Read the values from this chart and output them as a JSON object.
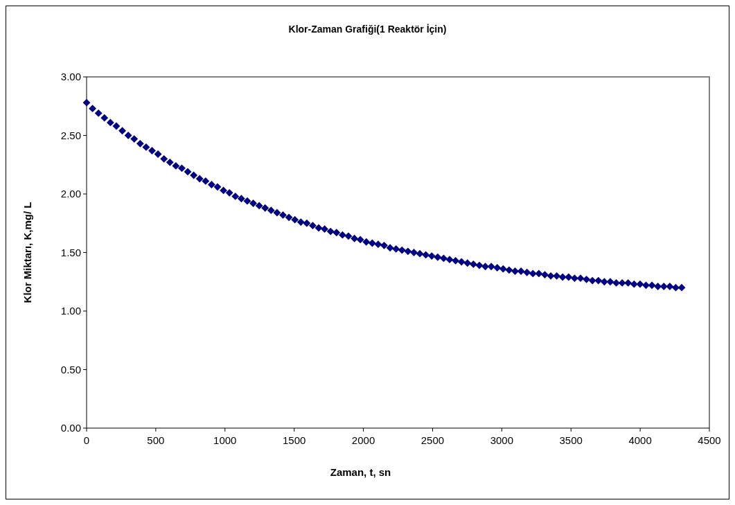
{
  "chart_data": {
    "type": "scatter",
    "title": "Klor-Zaman Grafiği(1 Reaktör İçin)",
    "xlabel": "Zaman, t, sn",
    "ylabel": "Klor Miktarı, K,mg/ L",
    "marker": "diamond",
    "x": [
      0,
      43,
      86,
      129,
      172,
      215,
      258,
      301,
      344,
      387,
      430,
      473,
      516,
      559,
      602,
      645,
      688,
      731,
      774,
      817,
      860,
      903,
      946,
      989,
      1032,
      1075,
      1118,
      1161,
      1204,
      1247,
      1290,
      1333,
      1376,
      1419,
      1462,
      1505,
      1548,
      1591,
      1634,
      1677,
      1720,
      1763,
      1806,
      1849,
      1892,
      1935,
      1978,
      2021,
      2064,
      2107,
      2150,
      2193,
      2236,
      2279,
      2322,
      2365,
      2408,
      2451,
      2494,
      2537,
      2580,
      2623,
      2666,
      2709,
      2752,
      2795,
      2838,
      2881,
      2924,
      2967,
      3010,
      3053,
      3096,
      3139,
      3182,
      3225,
      3268,
      3311,
      3354,
      3397,
      3440,
      3483,
      3526,
      3569,
      3612,
      3655,
      3698,
      3741,
      3784,
      3827,
      3870,
      3913,
      3956,
      3999,
      4042,
      4085,
      4128,
      4171,
      4214,
      4257,
      4300
    ],
    "series": [
      {
        "color": "#000080",
        "values": [
          2.78,
          2.73,
          2.69,
          2.65,
          2.61,
          2.58,
          2.54,
          2.5,
          2.47,
          2.43,
          2.4,
          2.37,
          2.34,
          2.3,
          2.27,
          2.24,
          2.22,
          2.19,
          2.16,
          2.13,
          2.11,
          2.08,
          2.06,
          2.03,
          2.01,
          1.98,
          1.96,
          1.94,
          1.92,
          1.9,
          1.88,
          1.86,
          1.84,
          1.82,
          1.8,
          1.78,
          1.76,
          1.75,
          1.73,
          1.71,
          1.7,
          1.68,
          1.67,
          1.65,
          1.64,
          1.62,
          1.61,
          1.59,
          1.58,
          1.57,
          1.56,
          1.54,
          1.53,
          1.52,
          1.51,
          1.5,
          1.49,
          1.48,
          1.47,
          1.46,
          1.45,
          1.44,
          1.43,
          1.42,
          1.41,
          1.4,
          1.39,
          1.38,
          1.38,
          1.37,
          1.36,
          1.35,
          1.34,
          1.34,
          1.33,
          1.32,
          1.32,
          1.31,
          1.3,
          1.3,
          1.29,
          1.29,
          1.28,
          1.28,
          1.27,
          1.26,
          1.26,
          1.25,
          1.25,
          1.24,
          1.24,
          1.24,
          1.23,
          1.23,
          1.22,
          1.22,
          1.21,
          1.21,
          1.21,
          1.2,
          1.2
        ]
      }
    ],
    "xlim": [
      0,
      4500
    ],
    "xticks": [
      0,
      500,
      1000,
      1500,
      2000,
      2500,
      3000,
      3500,
      4000,
      4500
    ],
    "ylim": [
      0,
      3
    ],
    "yticks": [
      {
        "value": 0,
        "label": "0.00"
      },
      {
        "value": 0.5,
        "label": "0.50"
      },
      {
        "value": 1,
        "label": "1.00"
      },
      {
        "value": 1.5,
        "label": "1.50"
      },
      {
        "value": 2,
        "label": "2.00"
      },
      {
        "value": 2.5,
        "label": "2.50"
      },
      {
        "value": 3,
        "label": "3.00"
      }
    ],
    "grid": false
  }
}
